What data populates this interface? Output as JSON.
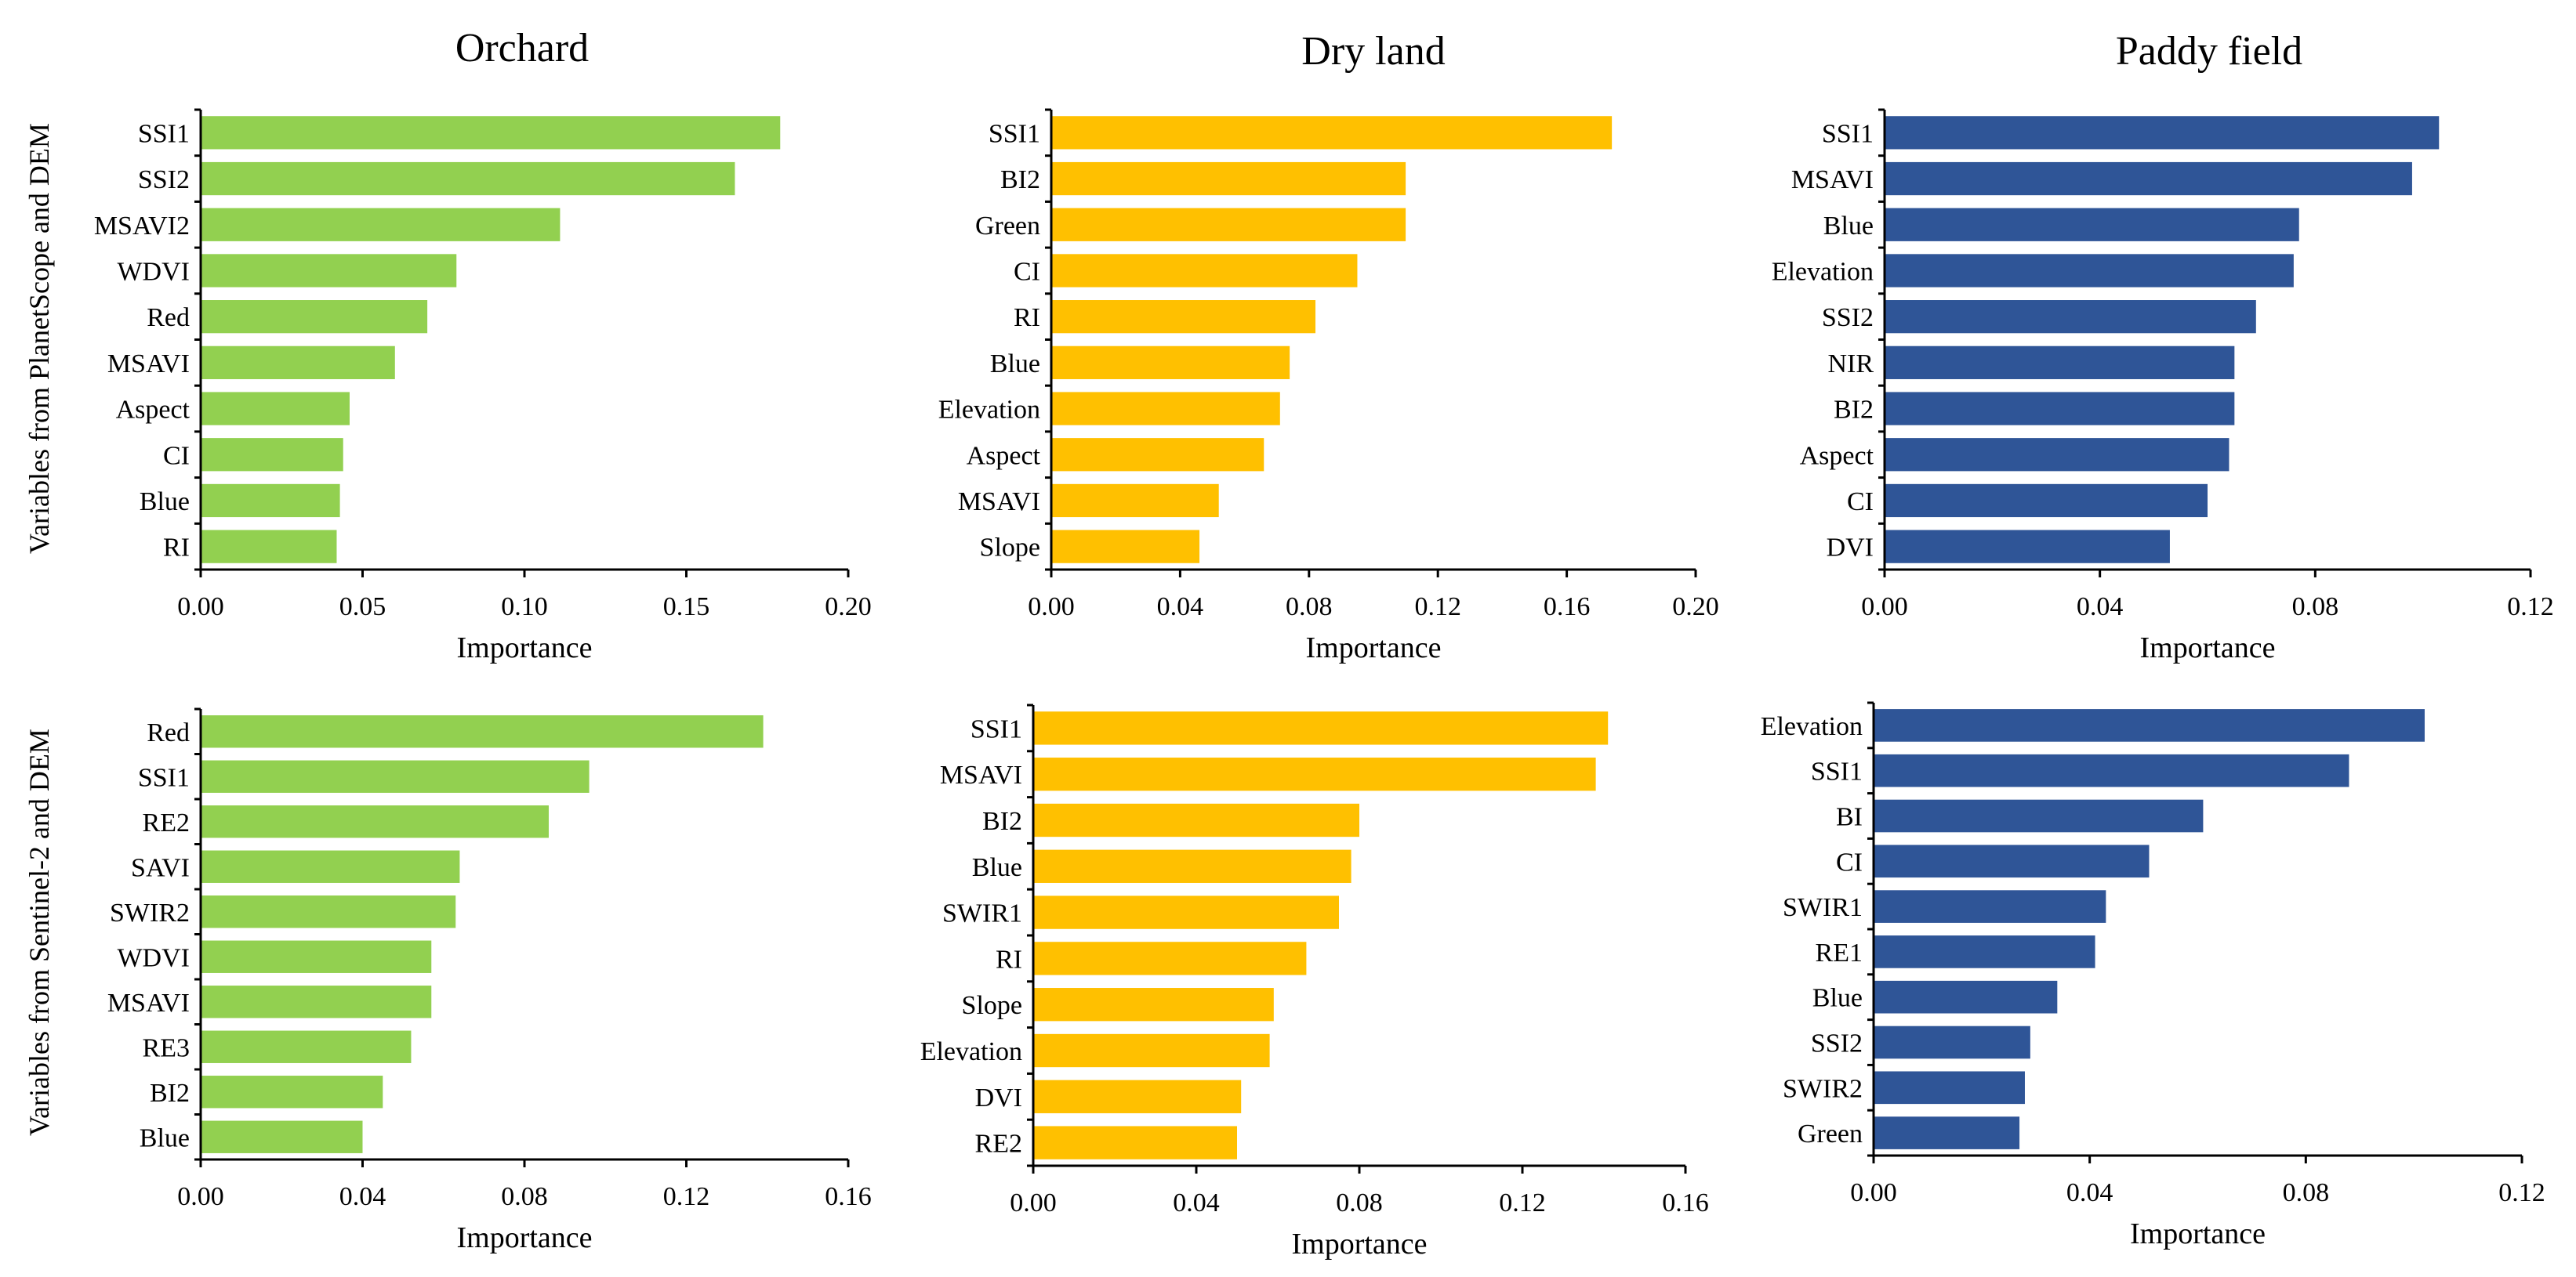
{
  "titles": [
    "Orchard",
    "Dry land",
    "Paddy field"
  ],
  "row_labels": [
    "Variables from PlanetScope and DEM",
    "Variables from Sentinel-2 and DEM"
  ],
  "colors": {
    "Orchard": "#92d050",
    "Dry land": "#ffc000",
    "Paddy field": "#2f5597"
  },
  "chart_data": [
    {
      "type": "bar",
      "orientation": "horizontal",
      "title": "Orchard",
      "row": "Variables from PlanetScope and DEM",
      "xlabel": "Importance",
      "xlim": [
        0,
        0.2
      ],
      "xticks": [
        "0.00",
        "0.05",
        "0.10",
        "0.15",
        "0.20"
      ],
      "xtick_values": [
        0,
        0.05,
        0.1,
        0.15,
        0.2
      ],
      "color": "#92d050",
      "categories": [
        "SSI1",
        "SSI2",
        "MSAVI2",
        "WDVI",
        "Red",
        "MSAVI",
        "Aspect",
        "CI",
        "Blue",
        "RI"
      ],
      "values": [
        0.179,
        0.165,
        0.111,
        0.079,
        0.07,
        0.06,
        0.046,
        0.044,
        0.043,
        0.042
      ]
    },
    {
      "type": "bar",
      "orientation": "horizontal",
      "title": "Dry land",
      "row": "Variables from PlanetScope and DEM",
      "xlabel": "Importance",
      "xlim": [
        0,
        0.2
      ],
      "xticks": [
        "0.00",
        "0.04",
        "0.08",
        "0.12",
        "0.16",
        "0.20"
      ],
      "xtick_values": [
        0,
        0.04,
        0.08,
        0.12,
        0.16,
        0.2
      ],
      "color": "#ffc000",
      "categories": [
        "SSI1",
        "BI2",
        "Green",
        "CI",
        "RI",
        "Blue",
        "Elevation",
        "Aspect",
        "MSAVI",
        "Slope"
      ],
      "values": [
        0.174,
        0.11,
        0.11,
        0.095,
        0.082,
        0.074,
        0.071,
        0.066,
        0.052,
        0.046
      ]
    },
    {
      "type": "bar",
      "orientation": "horizontal",
      "title": "Paddy field",
      "row": "Variables from PlanetScope and DEM",
      "xlabel": "Importance",
      "xlim": [
        0,
        0.12
      ],
      "xticks": [
        "0.00",
        "0.04",
        "0.08",
        "0.12"
      ],
      "xtick_values": [
        0,
        0.04,
        0.08,
        0.12
      ],
      "color": "#2f5597",
      "categories": [
        "SSI1",
        "MSAVI",
        "Blue",
        "Elevation",
        "SSI2",
        "NIR",
        "BI2",
        "Aspect",
        "CI",
        "DVI"
      ],
      "values": [
        0.103,
        0.098,
        0.077,
        0.076,
        0.069,
        0.065,
        0.065,
        0.064,
        0.06,
        0.053
      ]
    },
    {
      "type": "bar",
      "orientation": "horizontal",
      "title": "",
      "row": "Variables from Sentinel-2 and DEM",
      "xlabel": "Importance",
      "xlim": [
        0,
        0.16
      ],
      "xticks": [
        "0.00",
        "0.04",
        "0.08",
        "0.12",
        "0.16"
      ],
      "xtick_values": [
        0,
        0.04,
        0.08,
        0.12,
        0.16
      ],
      "color": "#92d050",
      "categories": [
        "Red",
        "SSI1",
        "RE2",
        "SAVI",
        "SWIR2",
        "WDVI",
        "MSAVI",
        "RE3",
        "BI2",
        "Blue"
      ],
      "values": [
        0.139,
        0.096,
        0.086,
        0.064,
        0.063,
        0.057,
        0.057,
        0.052,
        0.045,
        0.04
      ]
    },
    {
      "type": "bar",
      "orientation": "horizontal",
      "title": "",
      "row": "Variables from Sentinel-2 and DEM",
      "xlabel": "Importance",
      "xlim": [
        0,
        0.16
      ],
      "xticks": [
        "0.00",
        "0.04",
        "0.08",
        "0.12",
        "0.16"
      ],
      "xtick_values": [
        0,
        0.04,
        0.08,
        0.12,
        0.16
      ],
      "color": "#ffc000",
      "categories": [
        "SSI1",
        "MSAVI",
        "BI2",
        "Blue",
        "SWIR1",
        "RI",
        "Slope",
        "Elevation",
        "DVI",
        "RE2"
      ],
      "values": [
        0.141,
        0.138,
        0.08,
        0.078,
        0.075,
        0.067,
        0.059,
        0.058,
        0.051,
        0.05
      ]
    },
    {
      "type": "bar",
      "orientation": "horizontal",
      "title": "",
      "row": "Variables from Sentinel-2 and DEM",
      "xlabel": "Importance",
      "xlim": [
        0,
        0.12
      ],
      "xticks": [
        "0.00",
        "0.04",
        "0.08",
        "0.12"
      ],
      "xtick_values": [
        0,
        0.04,
        0.08,
        0.12
      ],
      "color": "#2f5597",
      "categories": [
        "Elevation",
        "SSI1",
        "BI",
        "CI",
        "SWIR1",
        "RE1",
        "Blue",
        "SSI2",
        "SWIR2",
        "Green"
      ],
      "values": [
        0.102,
        0.088,
        0.061,
        0.051,
        0.043,
        0.041,
        0.034,
        0.029,
        0.028,
        0.027
      ]
    }
  ]
}
